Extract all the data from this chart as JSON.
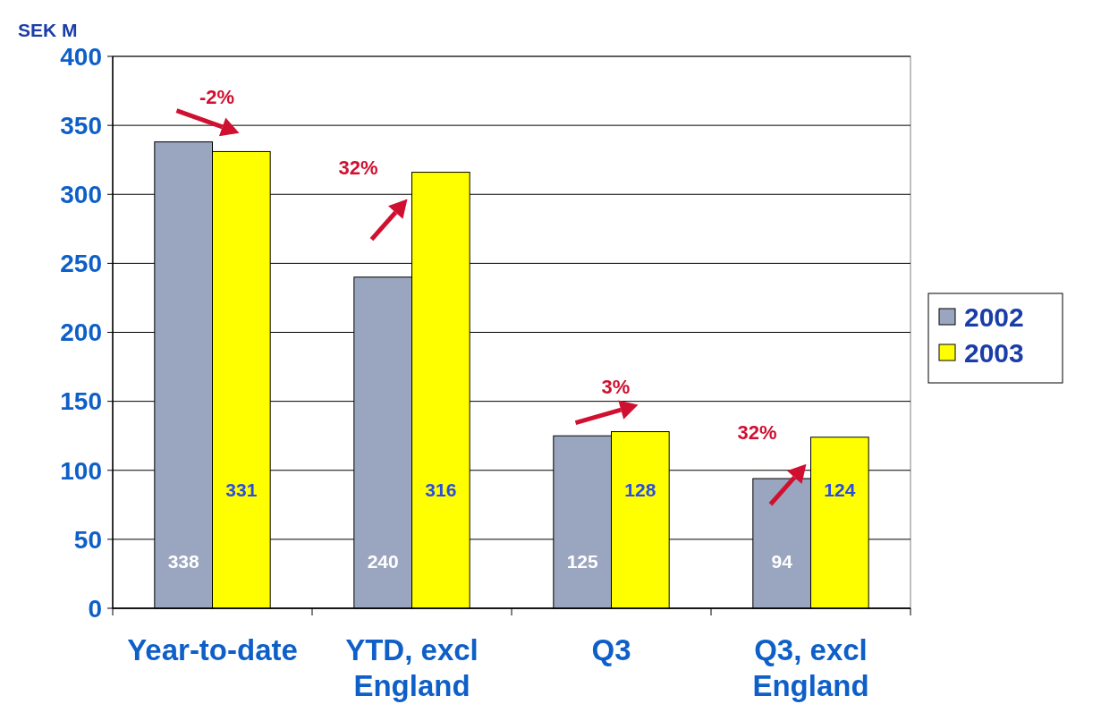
{
  "chart_data": {
    "type": "bar",
    "ylabel": "SEK M",
    "categories": [
      "Year-to-date",
      "YTD, excl England",
      "Q3",
      "Q3, excl England"
    ],
    "series": [
      {
        "name": "2002",
        "color": "#9aa6bf",
        "values": [
          338,
          240,
          125,
          94
        ]
      },
      {
        "name": "2003",
        "color": "#ffff00",
        "values": [
          331,
          316,
          128,
          124
        ]
      }
    ],
    "ylim": [
      0,
      400
    ],
    "yticks": [
      0,
      50,
      100,
      150,
      200,
      250,
      300,
      350,
      400
    ],
    "grid": "y",
    "legend": "right",
    "data_labels": true,
    "annotations": [
      "-2%",
      "32%",
      "3%",
      "32%"
    ]
  }
}
